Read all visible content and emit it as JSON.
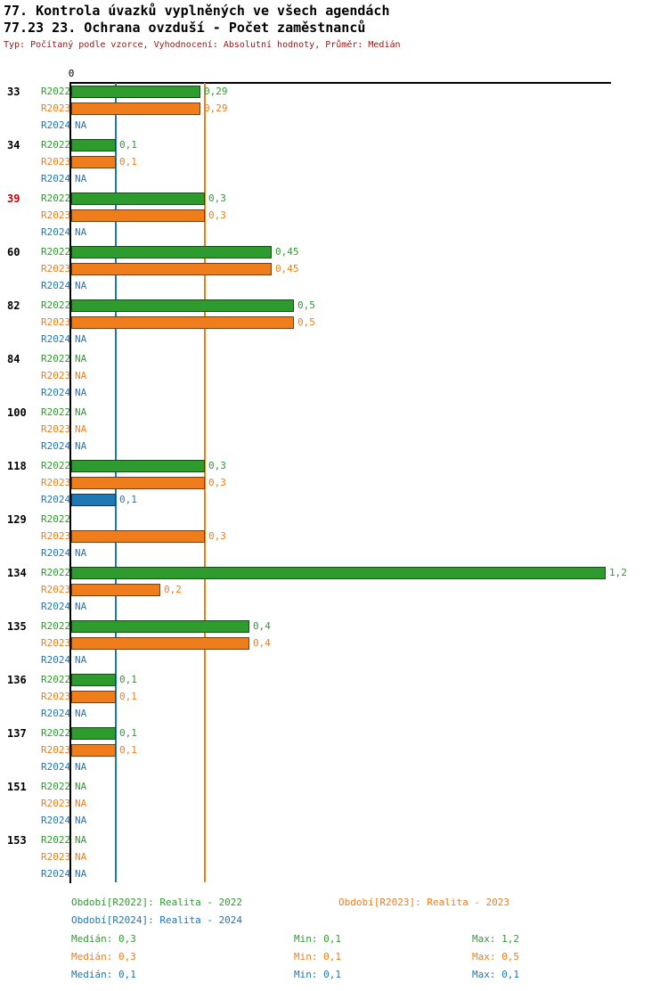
{
  "header": {
    "title_line1": "77. Kontrola úvazků vyplněných ve všech agendách",
    "title_line2": "77.23 23. Ochrana ovzduší - Počet zaměstnanců",
    "subtitle": "Typ: Počítaný podle vzorce, Vyhodnocení: Absolutní hodnoty, Průměr: Medián"
  },
  "colors": {
    "r2022": "#2e9b2e",
    "r2023": "#ef7d1c",
    "r2024": "#1f77b4",
    "highlight_id": "#cc0000",
    "subtitle": "#8b1a1a",
    "axis": "#000000"
  },
  "chart_data": {
    "type": "bar",
    "orientation": "horizontal",
    "axis_tick": "0",
    "xlim": [
      0,
      1.2
    ],
    "grid": false,
    "series_labels": [
      "R2022",
      "R2023",
      "R2024"
    ],
    "series_keys": [
      "r2022",
      "r2023",
      "r2024"
    ],
    "guide_lines": [
      {
        "series": "r2022",
        "value": 0.3
      },
      {
        "series": "r2023",
        "value": 0.3
      },
      {
        "series": "r2024",
        "value": 0.1
      }
    ],
    "groups": [
      {
        "id": "33",
        "highlight": false,
        "bars": [
          {
            "value": 0.29,
            "label": "0,29"
          },
          {
            "value": 0.29,
            "label": "0,29"
          },
          {
            "value": null,
            "label": "NA"
          }
        ]
      },
      {
        "id": "34",
        "highlight": false,
        "bars": [
          {
            "value": 0.1,
            "label": "0,1"
          },
          {
            "value": 0.1,
            "label": "0,1"
          },
          {
            "value": null,
            "label": "NA"
          }
        ]
      },
      {
        "id": "39",
        "highlight": true,
        "bars": [
          {
            "value": 0.3,
            "label": "0,3"
          },
          {
            "value": 0.3,
            "label": "0,3"
          },
          {
            "value": null,
            "label": "NA"
          }
        ]
      },
      {
        "id": "60",
        "highlight": false,
        "bars": [
          {
            "value": 0.45,
            "label": "0,45"
          },
          {
            "value": 0.45,
            "label": "0,45"
          },
          {
            "value": null,
            "label": "NA"
          }
        ]
      },
      {
        "id": "82",
        "highlight": false,
        "bars": [
          {
            "value": 0.5,
            "label": "0,5"
          },
          {
            "value": 0.5,
            "label": "0,5"
          },
          {
            "value": null,
            "label": "NA"
          }
        ]
      },
      {
        "id": "84",
        "highlight": false,
        "bars": [
          {
            "value": null,
            "label": "NA"
          },
          {
            "value": null,
            "label": "NA"
          },
          {
            "value": null,
            "label": "NA"
          }
        ]
      },
      {
        "id": "100",
        "highlight": false,
        "bars": [
          {
            "value": null,
            "label": "NA"
          },
          {
            "value": null,
            "label": "NA"
          },
          {
            "value": null,
            "label": "NA"
          }
        ]
      },
      {
        "id": "118",
        "highlight": false,
        "bars": [
          {
            "value": 0.3,
            "label": "0,3"
          },
          {
            "value": 0.3,
            "label": "0,3"
          },
          {
            "value": 0.1,
            "label": "0,1"
          }
        ]
      },
      {
        "id": "129",
        "highlight": false,
        "bars": [
          {
            "value": null,
            "label": ""
          },
          {
            "value": 0.3,
            "label": "0,3"
          },
          {
            "value": null,
            "label": "NA"
          }
        ]
      },
      {
        "id": "134",
        "highlight": false,
        "bars": [
          {
            "value": 1.2,
            "label": "1,2"
          },
          {
            "value": 0.2,
            "label": "0,2"
          },
          {
            "value": null,
            "label": "NA"
          }
        ]
      },
      {
        "id": "135",
        "highlight": false,
        "bars": [
          {
            "value": 0.4,
            "label": "0,4"
          },
          {
            "value": 0.4,
            "label": "0,4"
          },
          {
            "value": null,
            "label": "NA"
          }
        ]
      },
      {
        "id": "136",
        "highlight": false,
        "bars": [
          {
            "value": 0.1,
            "label": "0,1"
          },
          {
            "value": 0.1,
            "label": "0,1"
          },
          {
            "value": null,
            "label": "NA"
          }
        ]
      },
      {
        "id": "137",
        "highlight": false,
        "bars": [
          {
            "value": 0.1,
            "label": "0,1"
          },
          {
            "value": 0.1,
            "label": "0,1"
          },
          {
            "value": null,
            "label": "NA"
          }
        ]
      },
      {
        "id": "151",
        "highlight": false,
        "bars": [
          {
            "value": null,
            "label": "NA"
          },
          {
            "value": null,
            "label": "NA"
          },
          {
            "value": null,
            "label": "NA"
          }
        ]
      },
      {
        "id": "153",
        "highlight": false,
        "bars": [
          {
            "value": null,
            "label": "NA"
          },
          {
            "value": null,
            "label": "NA"
          },
          {
            "value": null,
            "label": "NA"
          }
        ]
      }
    ]
  },
  "legend": {
    "r2022": "Období[R2022]: Realita - 2022",
    "r2023": "Období[R2023]: Realita - 2023",
    "r2024": "Období[R2024]: Realita - 2024"
  },
  "stats": {
    "r2022": {
      "median": "Medián: 0,3",
      "min": "Min: 0,1",
      "max": "Max: 1,2"
    },
    "r2023": {
      "median": "Medián: 0,3",
      "min": "Min: 0,1",
      "max": "Max: 0,5"
    },
    "r2024": {
      "median": "Medián: 0,1",
      "min": "Min: 0,1",
      "max": "Max: 0,1"
    }
  }
}
